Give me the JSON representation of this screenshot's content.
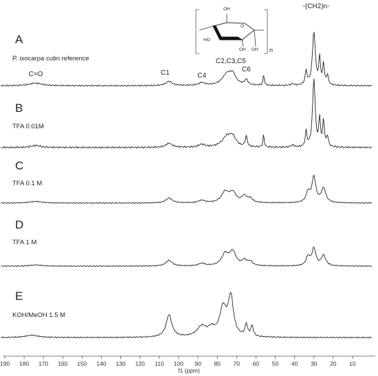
{
  "chart_data": {
    "type": "line",
    "xlabel": "f1 (ppm)",
    "xlim": [
      190,
      0
    ],
    "x_ticks": [
      190,
      180,
      170,
      160,
      150,
      140,
      130,
      120,
      110,
      100,
      90,
      80,
      70,
      60,
      50,
      40,
      30,
      20,
      10
    ],
    "grid": false,
    "structure_label": "-(CH2)n-",
    "panels": [
      {
        "label": "A",
        "note": "P. ixocarpa cutin reference",
        "peak_labels": [
          {
            "text": "C=O",
            "ppm": 174
          },
          {
            "text": "C1",
            "ppm": 107
          },
          {
            "text": "C4",
            "ppm": 88
          },
          {
            "text": "C2,C3,C5",
            "ppm": 73
          },
          {
            "text": "C6",
            "ppm": 65
          }
        ],
        "peaks": [
          {
            "ppm": 174,
            "h": 0.05,
            "w": 4
          },
          {
            "ppm": 105,
            "h": 0.08,
            "w": 2
          },
          {
            "ppm": 88,
            "h": 0.05,
            "w": 2
          },
          {
            "ppm": 75,
            "h": 0.2,
            "w": 3
          },
          {
            "ppm": 72,
            "h": 0.17,
            "w": 2
          },
          {
            "ppm": 65,
            "h": 0.1,
            "w": 1
          },
          {
            "ppm": 56,
            "h": 0.2,
            "w": 0.4
          },
          {
            "ppm": 41,
            "h": 0.03,
            "w": 1
          },
          {
            "ppm": 34,
            "h": 0.26,
            "w": 0.6
          },
          {
            "ppm": 30,
            "h": 1.0,
            "w": 0.9
          },
          {
            "ppm": 27,
            "h": 0.5,
            "w": 0.5
          },
          {
            "ppm": 25,
            "h": 0.4,
            "w": 0.5
          },
          {
            "ppm": 23,
            "h": 0.18,
            "w": 0.6
          }
        ]
      },
      {
        "label": "B",
        "note": "TFA 0.01M",
        "peak_labels": [],
        "peaks": [
          {
            "ppm": 174,
            "h": 0.03,
            "w": 3
          },
          {
            "ppm": 105,
            "h": 0.06,
            "w": 2
          },
          {
            "ppm": 88,
            "h": 0.04,
            "w": 2
          },
          {
            "ppm": 75,
            "h": 0.15,
            "w": 3
          },
          {
            "ppm": 72,
            "h": 0.12,
            "w": 2
          },
          {
            "ppm": 65,
            "h": 0.15,
            "w": 0.6
          },
          {
            "ppm": 56,
            "h": 0.18,
            "w": 0.4
          },
          {
            "ppm": 41,
            "h": 0.03,
            "w": 1
          },
          {
            "ppm": 34,
            "h": 0.22,
            "w": 0.5
          },
          {
            "ppm": 30,
            "h": 1.0,
            "w": 0.8
          },
          {
            "ppm": 27,
            "h": 0.4,
            "w": 0.5
          },
          {
            "ppm": 25,
            "h": 0.38,
            "w": 0.5
          },
          {
            "ppm": 23,
            "h": 0.15,
            "w": 0.6
          }
        ]
      },
      {
        "label": "C",
        "note": "TFA 0.1 M",
        "peak_labels": [],
        "peaks": [
          {
            "ppm": 174,
            "h": 0.04,
            "w": 4
          },
          {
            "ppm": 105,
            "h": 0.12,
            "w": 2
          },
          {
            "ppm": 88,
            "h": 0.06,
            "w": 2
          },
          {
            "ppm": 76,
            "h": 0.25,
            "w": 2.2
          },
          {
            "ppm": 72,
            "h": 0.24,
            "w": 2.2
          },
          {
            "ppm": 66,
            "h": 0.15,
            "w": 1.5
          },
          {
            "ppm": 63,
            "h": 0.1,
            "w": 1.5
          },
          {
            "ppm": 33,
            "h": 0.25,
            "w": 1.2
          },
          {
            "ppm": 30,
            "h": 0.62,
            "w": 1.2
          },
          {
            "ppm": 25,
            "h": 0.35,
            "w": 1.4
          }
        ]
      },
      {
        "label": "D",
        "note": "TFA 1 M",
        "peak_labels": [],
        "peaks": [
          {
            "ppm": 174,
            "h": 0.03,
            "w": 4
          },
          {
            "ppm": 105,
            "h": 0.14,
            "w": 2
          },
          {
            "ppm": 88,
            "h": 0.06,
            "w": 2
          },
          {
            "ppm": 76,
            "h": 0.28,
            "w": 2.2
          },
          {
            "ppm": 72,
            "h": 0.33,
            "w": 2
          },
          {
            "ppm": 66,
            "h": 0.12,
            "w": 1.5
          },
          {
            "ppm": 63,
            "h": 0.1,
            "w": 1.5
          },
          {
            "ppm": 33,
            "h": 0.22,
            "w": 1.2
          },
          {
            "ppm": 30,
            "h": 0.42,
            "w": 1.2
          },
          {
            "ppm": 25,
            "h": 0.25,
            "w": 1.4
          }
        ]
      },
      {
        "label": "E",
        "note": "KOH/MeOH 1.5 M",
        "peak_labels": [],
        "peaks": [
          {
            "ppm": 176,
            "h": 0.05,
            "w": 4
          },
          {
            "ppm": 105,
            "h": 0.48,
            "w": 1.8
          },
          {
            "ppm": 88,
            "h": 0.22,
            "w": 3
          },
          {
            "ppm": 83,
            "h": 0.14,
            "w": 2
          },
          {
            "ppm": 77,
            "h": 0.6,
            "w": 2.2
          },
          {
            "ppm": 73,
            "h": 0.82,
            "w": 1.6
          },
          {
            "ppm": 65,
            "h": 0.25,
            "w": 0.8
          },
          {
            "ppm": 62,
            "h": 0.22,
            "w": 0.8
          }
        ]
      }
    ]
  }
}
